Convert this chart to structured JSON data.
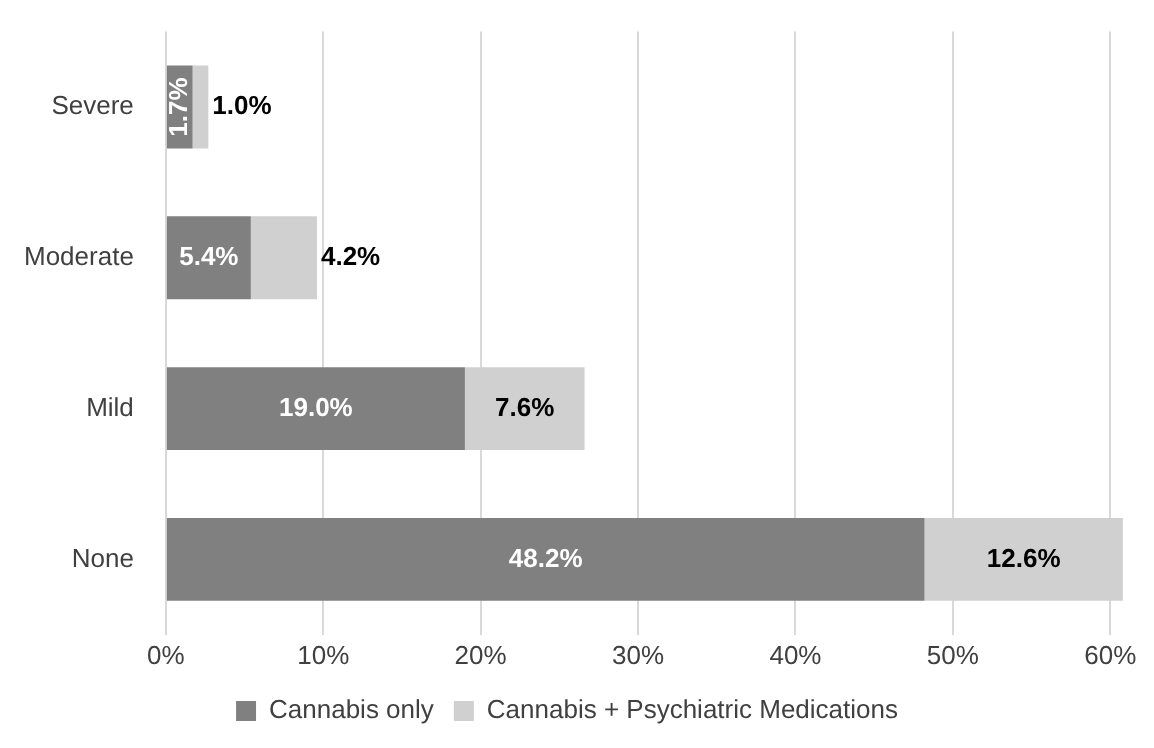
{
  "chart_data": {
    "type": "bar",
    "orientation": "horizontal",
    "stacked": true,
    "categories": [
      "Severe",
      "Moderate",
      "Mild",
      "None"
    ],
    "series": [
      {
        "name": "Cannabis only",
        "color": "#808080",
        "values": [
          1.7,
          5.4,
          19.0,
          48.2
        ],
        "value_labels": [
          "1.7%",
          "5.4%",
          "19.0%",
          "48.2%"
        ]
      },
      {
        "name": "Cannabis + Psychiatric Medications",
        "color": "#d0d0d0",
        "values": [
          1.0,
          4.2,
          7.6,
          12.6
        ],
        "value_labels": [
          "1.0%",
          "4.2%",
          "7.6%",
          "12.6%"
        ]
      }
    ],
    "xlim": [
      0,
      61
    ],
    "xticks": [
      {
        "value": 0,
        "label": "0%"
      },
      {
        "value": 10,
        "label": "10%"
      },
      {
        "value": 20,
        "label": "20%"
      },
      {
        "value": 30,
        "label": "30%"
      },
      {
        "value": 40,
        "label": "40%"
      },
      {
        "value": 50,
        "label": "50%"
      },
      {
        "value": 60,
        "label": "60%"
      }
    ],
    "grid": "x",
    "legend": "bottom"
  }
}
